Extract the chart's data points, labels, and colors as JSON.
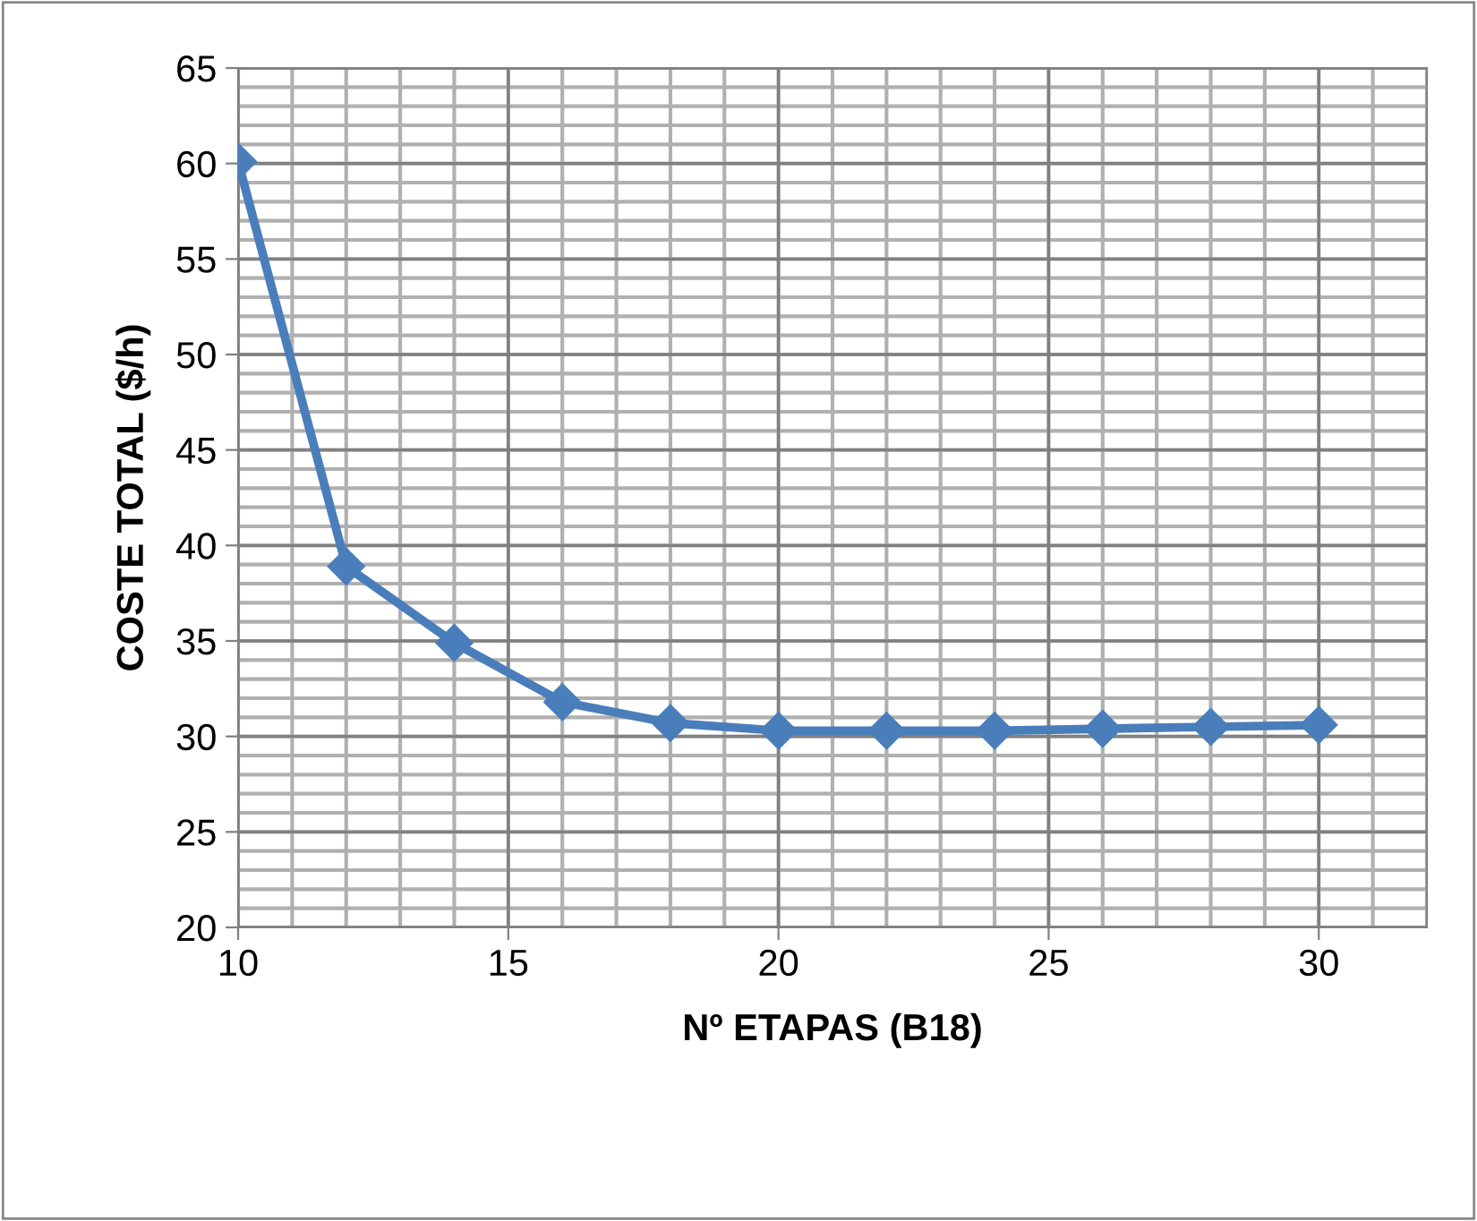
{
  "chart_data": {
    "type": "line",
    "xlabel": "Nº ETAPAS (B18)",
    "ylabel": "COSTE TOTAL ($/h)",
    "x": [
      10,
      12,
      14,
      16,
      18,
      20,
      22,
      24,
      26,
      28,
      30
    ],
    "series": [
      {
        "color": "#4a7ebb",
        "values": [
          60.1,
          38.9,
          34.9,
          31.8,
          30.7,
          30.3,
          30.3,
          30.3,
          30.4,
          30.5,
          30.6
        ]
      }
    ],
    "xlim": [
      10,
      32
    ],
    "xticks": [
      10,
      15,
      20,
      25,
      30
    ],
    "ylim": [
      20,
      65
    ],
    "yticks": [
      20,
      25,
      30,
      35,
      40,
      45,
      50,
      55,
      60,
      65
    ],
    "grid": true,
    "marker": "diamond",
    "line_style": "solid"
  }
}
